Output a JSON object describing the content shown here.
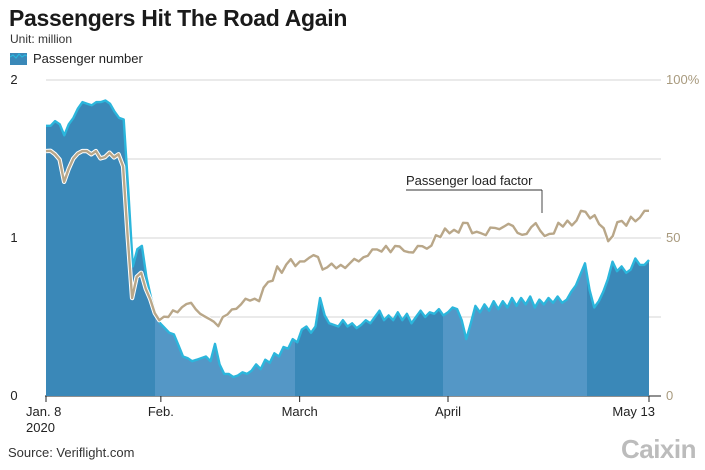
{
  "header": {
    "title": "Passengers Hit The Road Again",
    "unit": "Unit: million"
  },
  "legend": {
    "label": "Passenger number"
  },
  "source": "Source: Veriflight.com",
  "logo": "Caixin",
  "colors": {
    "area_dark": "#3a88b8",
    "area_light": "#5497c6",
    "area_outline": "#2bb6dc",
    "load_factor_line": "#b9a789",
    "grid": "#c9c9c9",
    "right_axis_text": "#a89a7e"
  },
  "chart_data": {
    "type": "area",
    "title": "Passengers Hit The Road Again",
    "ylabel": "Unit: million",
    "xlim": [
      "2020-01-08",
      "2020-05-13"
    ],
    "y_left": {
      "range": [
        0,
        2
      ],
      "ticks": [
        "0",
        "1",
        "2"
      ]
    },
    "y_right": {
      "range": [
        0,
        100
      ],
      "ticks": [
        "0",
        "50",
        "100%"
      ]
    },
    "x_ticks": [
      {
        "date": "2020-01-08",
        "label": "Jan. 8",
        "sublabel": "2020"
      },
      {
        "date": "2020-02-01",
        "label": "Feb."
      },
      {
        "date": "2020-03-01",
        "label": "March"
      },
      {
        "date": "2020-04-01",
        "label": "April"
      },
      {
        "date": "2020-05-13",
        "label": "May 13"
      }
    ],
    "grid": true,
    "annotations": [
      {
        "text": "Passenger load factor",
        "series": "Passenger load factor"
      }
    ],
    "series": [
      {
        "name": "Passenger number",
        "axis": "left",
        "type": "area",
        "x_start": "2020-01-08",
        "x_end": "2020-05-13",
        "values": [
          1.71,
          1.71,
          1.74,
          1.72,
          1.65,
          1.72,
          1.76,
          1.82,
          1.86,
          1.85,
          1.84,
          1.86,
          1.86,
          1.87,
          1.85,
          1.8,
          1.76,
          1.75,
          1.31,
          0.82,
          0.93,
          0.95,
          0.75,
          0.62,
          0.52,
          0.46,
          0.43,
          0.4,
          0.39,
          0.32,
          0.25,
          0.24,
          0.22,
          0.23,
          0.24,
          0.25,
          0.22,
          0.33,
          0.2,
          0.14,
          0.14,
          0.12,
          0.13,
          0.15,
          0.14,
          0.16,
          0.2,
          0.17,
          0.23,
          0.21,
          0.27,
          0.25,
          0.31,
          0.3,
          0.36,
          0.34,
          0.42,
          0.44,
          0.4,
          0.44,
          0.62,
          0.51,
          0.46,
          0.45,
          0.44,
          0.48,
          0.44,
          0.46,
          0.43,
          0.45,
          0.48,
          0.46,
          0.5,
          0.54,
          0.48,
          0.51,
          0.48,
          0.53,
          0.48,
          0.52,
          0.46,
          0.5,
          0.54,
          0.5,
          0.53,
          0.52,
          0.55,
          0.51,
          0.53,
          0.56,
          0.55,
          0.48,
          0.36,
          0.46,
          0.57,
          0.53,
          0.58,
          0.54,
          0.6,
          0.55,
          0.6,
          0.56,
          0.62,
          0.57,
          0.62,
          0.58,
          0.63,
          0.56,
          0.61,
          0.58,
          0.62,
          0.59,
          0.63,
          0.59,
          0.61,
          0.66,
          0.7,
          0.77,
          0.84,
          0.67,
          0.56,
          0.6,
          0.66,
          0.74,
          0.85,
          0.79,
          0.82,
          0.78,
          0.8,
          0.87,
          0.83,
          0.83,
          0.86
        ]
      },
      {
        "name": "Passenger load factor",
        "axis": "right",
        "type": "line",
        "x_start": "2020-01-08",
        "x_end": "2020-05-13",
        "unit": "%",
        "values": [
          77.5,
          77.6,
          76.5,
          74.8,
          67.8,
          71.9,
          75.1,
          76.7,
          77.5,
          77.5,
          76.5,
          77.5,
          75.2,
          75.6,
          77.0,
          75.5,
          76.5,
          72.7,
          50.8,
          31.0,
          37.7,
          39.0,
          34.0,
          30.6,
          26.2,
          24.0,
          25.1,
          25.0,
          27.1,
          26.5,
          28.1,
          29.1,
          29.5,
          27.5,
          26.0,
          25.2,
          24.4,
          23.5,
          22.1,
          25.0,
          25.8,
          27.4,
          27.6,
          29.0,
          30.8,
          30.2,
          30.8,
          30.0,
          34.3,
          36.1,
          36.5,
          41.0,
          39.0,
          41.6,
          43.3,
          41.1,
          42.6,
          42.6,
          43.7,
          44.6,
          44.0,
          40.0,
          40.7,
          41.9,
          40.4,
          41.5,
          40.5,
          42.0,
          43.4,
          42.6,
          43.9,
          44.4,
          46.4,
          46.4,
          45.7,
          47.5,
          45.5,
          47.5,
          47.3,
          45.9,
          45.5,
          45.4,
          47.5,
          47.4,
          46.6,
          47.6,
          50.9,
          50.3,
          53.0,
          51.5,
          52.6,
          51.7,
          54.8,
          54.7,
          51.5,
          52.0,
          51.5,
          50.9,
          53.3,
          53.2,
          52.8,
          53.6,
          54.5,
          53.8,
          51.6,
          51.0,
          51.3,
          53.4,
          54.7,
          52.3,
          50.6,
          51.3,
          51.4,
          54.8,
          53.6,
          55.5,
          54.0,
          55.5,
          58.6,
          58.3,
          56.2,
          57.2,
          54.4,
          53.1,
          49.0,
          50.6,
          55.0,
          55.4,
          53.9,
          56.7,
          55.3,
          56.5,
          58.6,
          58.6
        ]
      }
    ]
  }
}
